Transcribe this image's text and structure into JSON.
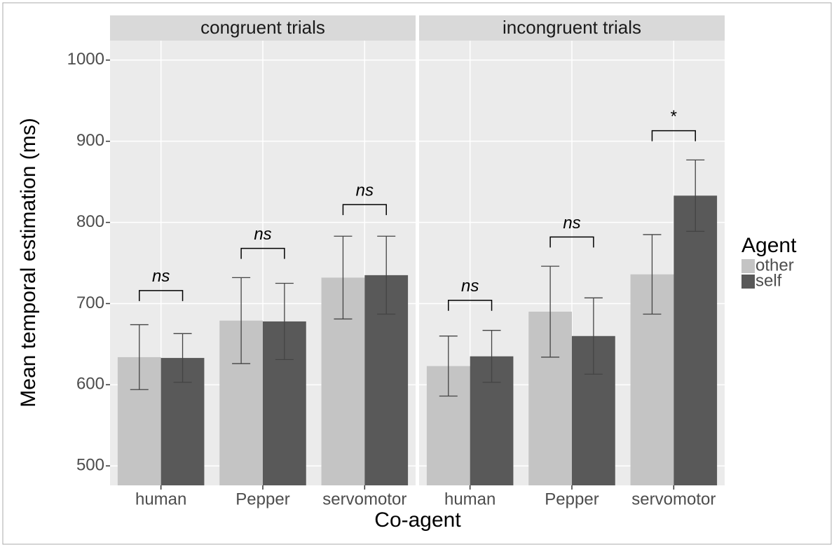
{
  "chart_data": {
    "type": "bar",
    "y_label": "Mean temporal estimation (ms)",
    "x_label": "Co-agent",
    "legend_title": "Agent",
    "categories": [
      "human",
      "Pepper",
      "servomotor"
    ],
    "ylim": [
      476,
      1024
    ],
    "yticks": [
      500,
      600,
      700,
      800,
      900,
      1000
    ],
    "grid": true,
    "series": [
      {
        "name": "other",
        "color": "#c4c4c4"
      },
      {
        "name": "self",
        "color": "#595959"
      }
    ],
    "facets": [
      {
        "title": "congruent trials",
        "values": [
          [
            634,
            679,
            732
          ],
          [
            633,
            678,
            735
          ]
        ],
        "errors": [
          [
            40,
            53,
            51
          ],
          [
            30,
            47,
            48
          ]
        ],
        "annotations": [
          {
            "label": "ns",
            "y": 716
          },
          {
            "label": "ns",
            "y": 768
          },
          {
            "label": "ns",
            "y": 822
          }
        ]
      },
      {
        "title": "incongruent trials",
        "values": [
          [
            623,
            690,
            736
          ],
          [
            635,
            660,
            833
          ]
        ],
        "errors": [
          [
            37,
            56,
            49
          ],
          [
            32,
            47,
            44
          ]
        ],
        "annotations": [
          {
            "label": "ns",
            "y": 704
          },
          {
            "label": "ns",
            "y": 782
          },
          {
            "label": "*",
            "y": 913
          }
        ]
      }
    ]
  }
}
